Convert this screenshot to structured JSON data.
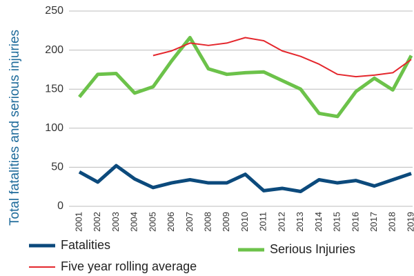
{
  "chart_data": {
    "type": "line",
    "y_label": "Total fatalities and serious injuries",
    "x": [
      "2001",
      "2002",
      "2003",
      "2004",
      "2005",
      "2006",
      "2007",
      "2008",
      "2009",
      "2010",
      "2011",
      "2012",
      "2013",
      "2014",
      "2015",
      "2016",
      "2017",
      "2018",
      "2019"
    ],
    "series": [
      {
        "name": "Fatalities",
        "color": "#0c4a7c",
        "width": 5,
        "values": [
          44,
          31,
          52,
          35,
          24,
          30,
          34,
          30,
          30,
          41,
          20,
          23,
          19,
          34,
          30,
          33,
          26,
          34,
          42
        ]
      },
      {
        "name": "Serious Injuries",
        "color": "#6cc24a",
        "width": 5,
        "values": [
          140,
          169,
          170,
          145,
          153,
          186,
          216,
          176,
          169,
          171,
          172,
          161,
          150,
          119,
          115,
          147,
          164,
          149,
          193
        ]
      },
      {
        "name": "Five year rolling average",
        "color": "#e4262c",
        "width": 2,
        "values": [
          null,
          null,
          null,
          null,
          193,
          199,
          209,
          206,
          209,
          216,
          212,
          199,
          192,
          182,
          169,
          166,
          168,
          171,
          188
        ]
      }
    ],
    "ylim": [
      0,
      250
    ],
    "yticks": [
      0,
      50,
      100,
      150,
      200,
      250
    ],
    "grid": true,
    "legend": "bottom"
  }
}
